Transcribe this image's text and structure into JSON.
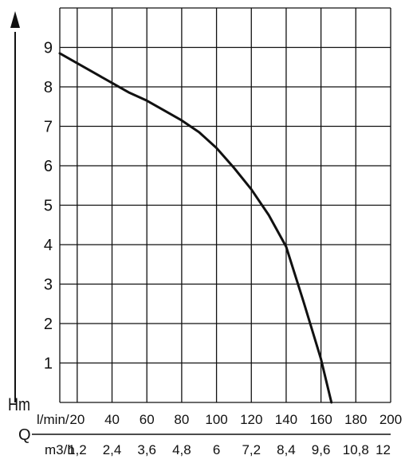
{
  "chart_data": {
    "type": "line",
    "ylabel": "Hm",
    "xlabel": "Q",
    "x_unit_primary": "l/min/",
    "x_unit_secondary": "m3/h",
    "xlim": [
      10,
      200
    ],
    "ylim": [
      0,
      10
    ],
    "grid": true,
    "y_ticks": [
      "1",
      "2",
      "3",
      "4",
      "5",
      "6",
      "7",
      "8",
      "9"
    ],
    "x_ticks_primary": [
      "20",
      "40",
      "60",
      "80",
      "100",
      "120",
      "140",
      "160",
      "180",
      "200"
    ],
    "x_ticks_secondary": [
      "1,2",
      "2,4",
      "3,6",
      "4,8",
      "6",
      "7,2",
      "8,4",
      "9,6",
      "10,8",
      "12"
    ],
    "series": [
      {
        "color": "#111111",
        "points": [
          [
            10,
            8.85
          ],
          [
            20,
            8.6
          ],
          [
            30,
            8.35
          ],
          [
            40,
            8.1
          ],
          [
            50,
            7.85
          ],
          [
            60,
            7.65
          ],
          [
            70,
            7.4
          ],
          [
            80,
            7.15
          ],
          [
            90,
            6.85
          ],
          [
            100,
            6.45
          ],
          [
            110,
            5.95
          ],
          [
            120,
            5.4
          ],
          [
            130,
            4.75
          ],
          [
            140,
            3.95
          ],
          [
            150,
            2.55
          ],
          [
            160,
            1.1
          ],
          [
            166,
            0
          ]
        ]
      }
    ]
  }
}
